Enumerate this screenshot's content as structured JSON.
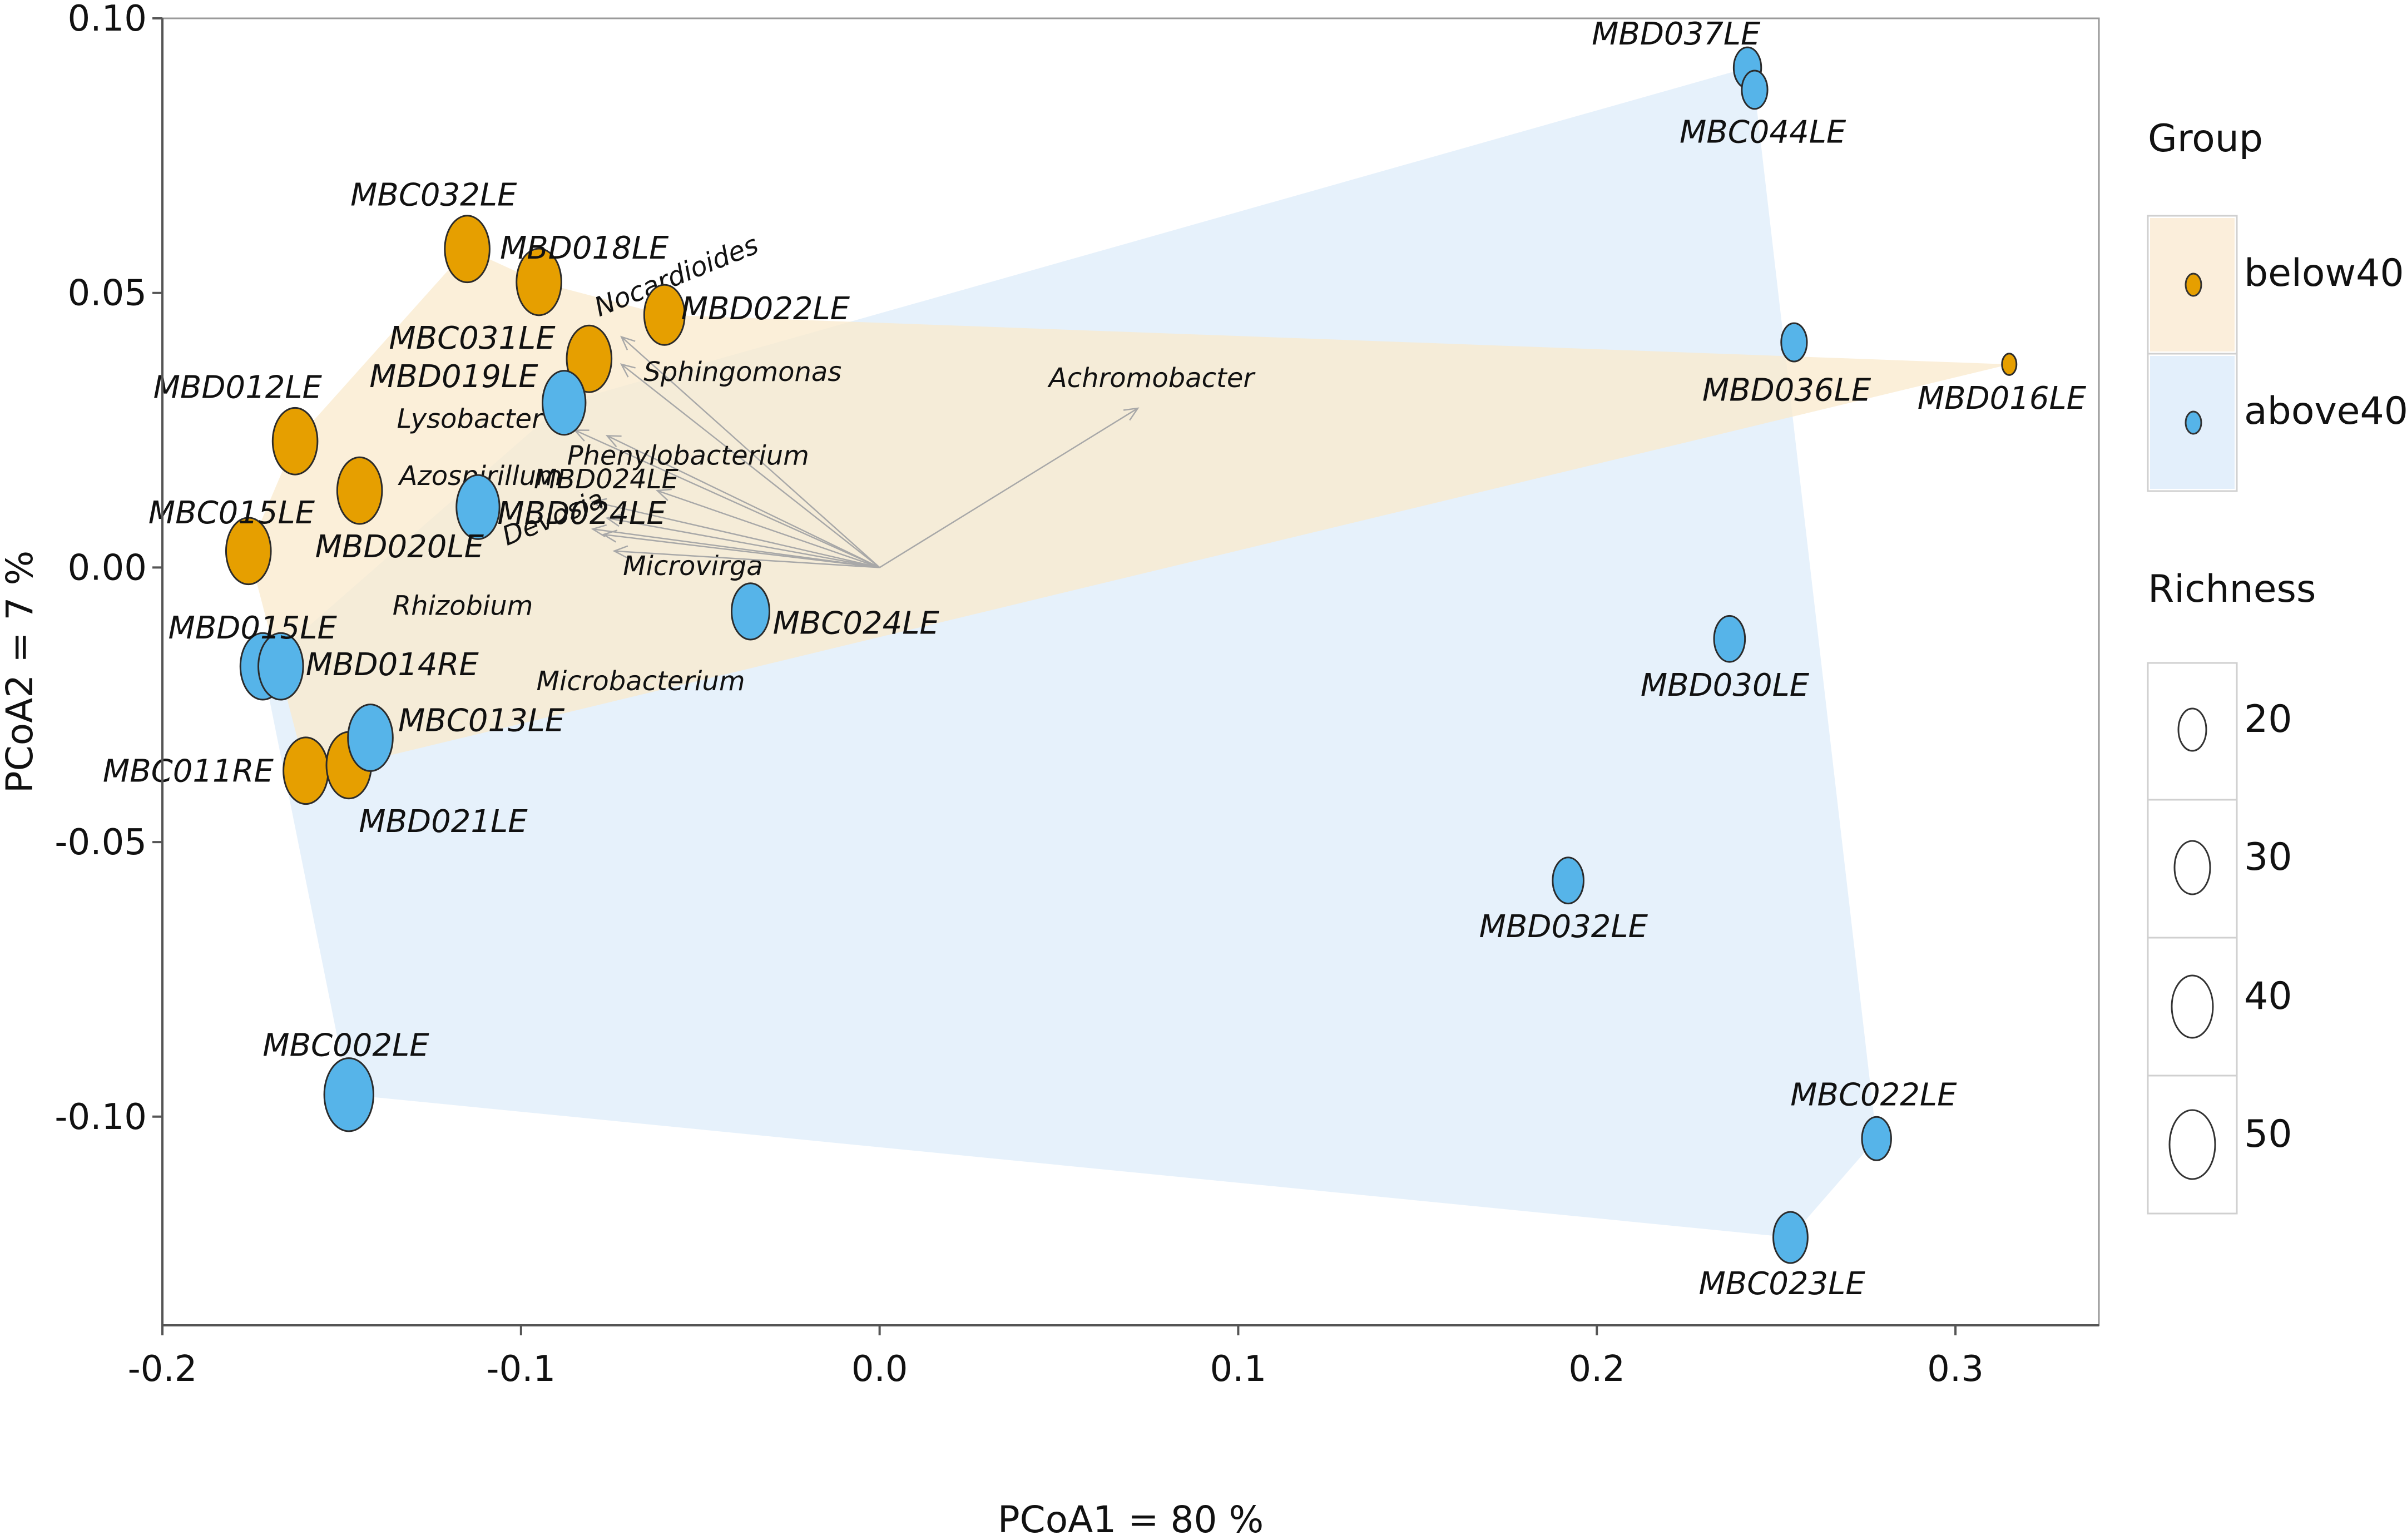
{
  "chart_data": {
    "type": "scatter",
    "title": "",
    "xlabel": "PCoA1 = 80 %",
    "ylabel": "PCoA2 = 7 %",
    "xlim": [
      -0.2,
      0.34
    ],
    "ylim": [
      -0.138,
      0.1
    ],
    "x_ticks": [
      {
        "value": -0.2,
        "label": "-0.2"
      },
      {
        "value": -0.1,
        "label": "-0.1"
      },
      {
        "value": 0.0,
        "label": "0.0"
      },
      {
        "value": 0.1,
        "label": "0.1"
      },
      {
        "value": 0.2,
        "label": "0.2"
      },
      {
        "value": 0.3,
        "label": "0.3"
      }
    ],
    "y_ticks": [
      {
        "value": 0.1,
        "label": "0.10"
      },
      {
        "value": 0.05,
        "label": "0.05"
      },
      {
        "value": 0.0,
        "label": "0.00"
      },
      {
        "value": -0.05,
        "label": "-0.05"
      },
      {
        "value": -0.1,
        "label": "-0.10"
      }
    ],
    "groups": [
      {
        "name": "below40",
        "color": "#E69F00",
        "hull_color": "#F9E9CC"
      },
      {
        "name": "above40",
        "color": "#56B4E9",
        "hull_color": "#DDEBFA"
      }
    ],
    "points": [
      {
        "label": "MBC032LE",
        "group": "below40",
        "x": -0.115,
        "y": 0.058,
        "richness": 50
      },
      {
        "label": "MBD018LE",
        "group": "below40",
        "x": -0.095,
        "y": 0.052,
        "richness": 50
      },
      {
        "label": "MBD022LE",
        "group": "below40",
        "x": -0.06,
        "y": 0.046,
        "richness": 45
      },
      {
        "label": "MBC031LE",
        "group": "below40",
        "x": -0.081,
        "y": 0.038,
        "richness": 50
      },
      {
        "label": "MBD012LE",
        "group": "below40",
        "x": -0.163,
        "y": 0.023,
        "richness": 50
      },
      {
        "label": "MBD020LE",
        "group": "below40",
        "x": -0.145,
        "y": 0.014,
        "richness": 50
      },
      {
        "label": "MBC015LE",
        "group": "below40",
        "x": -0.176,
        "y": 0.003,
        "richness": 50
      },
      {
        "label": "MBC011RE",
        "group": "below40",
        "x": -0.16,
        "y": -0.037,
        "richness": 50
      },
      {
        "label": "MBD021LE",
        "group": "below40",
        "x": -0.148,
        "y": -0.036,
        "richness": 50
      },
      {
        "label": "MBD016LE",
        "group": "below40",
        "x": 0.315,
        "y": 0.037,
        "richness": 15
      },
      {
        "label": "MBD019LE",
        "group": "above40",
        "x": -0.088,
        "y": 0.03,
        "richness": 48
      },
      {
        "label": "MBD024LE",
        "group": "above40",
        "x": -0.112,
        "y": 0.011,
        "richness": 48
      },
      {
        "label": "MBC024LE",
        "group": "above40",
        "x": -0.036,
        "y": -0.008,
        "richness": 42
      },
      {
        "label": "MBD015LE",
        "group": "above40",
        "x": -0.172,
        "y": -0.018,
        "richness": 50
      },
      {
        "label": "MBD014RE",
        "group": "above40",
        "x": -0.167,
        "y": -0.018,
        "richness": 50
      },
      {
        "label": "MBC013LE",
        "group": "above40",
        "x": -0.142,
        "y": -0.031,
        "richness": 50
      },
      {
        "label": "MBC002LE",
        "group": "above40",
        "x": -0.148,
        "y": -0.096,
        "richness": 55
      },
      {
        "label": "MBD037LE",
        "group": "above40",
        "x": 0.242,
        "y": 0.091,
        "richness": 30
      },
      {
        "label": "MBC044LE",
        "group": "above40",
        "x": 0.244,
        "y": 0.087,
        "richness": 28
      },
      {
        "label": "MBD036LE",
        "group": "above40",
        "x": 0.255,
        "y": 0.041,
        "richness": 28
      },
      {
        "label": "MBD030LE",
        "group": "above40",
        "x": 0.237,
        "y": -0.013,
        "richness": 34
      },
      {
        "label": "MBD032LE",
        "group": "above40",
        "x": 0.192,
        "y": -0.057,
        "richness": 34
      },
      {
        "label": "MBC022LE",
        "group": "above40",
        "x": 0.278,
        "y": -0.104,
        "richness": 32
      },
      {
        "label": "MBC023LE",
        "group": "above40",
        "x": 0.254,
        "y": -0.122,
        "richness": 38
      }
    ],
    "hulls": {
      "below40": [
        "MBC015LE",
        "MBD012LE",
        "MBC032LE",
        "MBD018LE",
        "MBD022LE",
        "MBD016LE",
        "MBD021LE",
        "MBC011RE"
      ],
      "above40": [
        "MBD015LE",
        "MBD019LE",
        "MBD037LE",
        "MBC044LE",
        "MBC022LE",
        "MBC023LE",
        "MBC002LE"
      ]
    },
    "biplot_origin": [
      0.0,
      0.0
    ],
    "taxa": [
      {
        "name": "Achromobacter",
        "x": 0.072,
        "y": 0.029
      },
      {
        "name": "Nocardioides",
        "x": -0.072,
        "y": 0.042
      },
      {
        "name": "Sphingomonas",
        "x": -0.072,
        "y": 0.037
      },
      {
        "name": "Lysobacter",
        "x": -0.085,
        "y": 0.025
      },
      {
        "name": "Phenylobacterium",
        "x": -0.076,
        "y": 0.024
      },
      {
        "name": "Azospirillum",
        "x": -0.08,
        "y": 0.012
      },
      {
        "name": "MBD024LE",
        "x": -0.062,
        "y": 0.014
      },
      {
        "name": "Devosia",
        "x": -0.076,
        "y": 0.009
      },
      {
        "name": "Microvirga",
        "x": -0.077,
        "y": 0.006
      },
      {
        "name": "Rhizobium",
        "x": -0.08,
        "y": 0.007
      },
      {
        "name": "Microbacterium",
        "x": -0.074,
        "y": 0.003
      }
    ],
    "legend": {
      "group_title": "Group",
      "richness_title": "Richness",
      "richness_levels": [
        "20",
        "30",
        "40",
        "50"
      ],
      "placement": "right"
    }
  }
}
